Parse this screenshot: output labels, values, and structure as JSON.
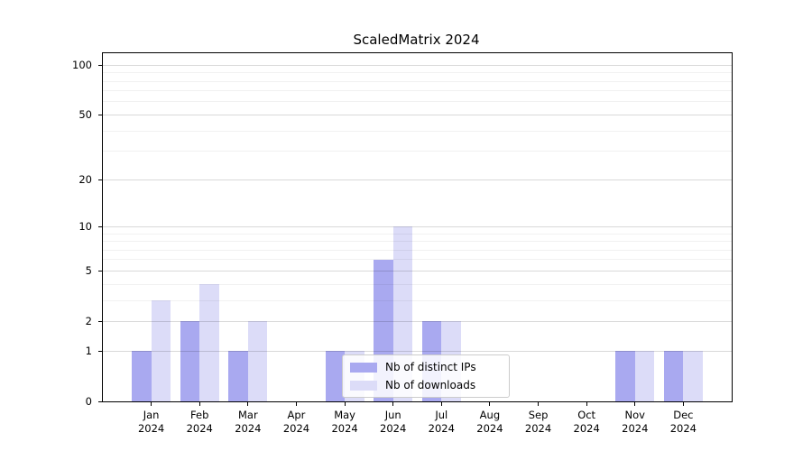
{
  "title": "ScaledMatrix 2024",
  "colors": {
    "series_ips": "#a9a9f0",
    "series_downloads": "#dcdcf8",
    "grid_major": "rgba(0,0,0,0.15)",
    "grid_minor": "rgba(0,0,0,0.055)",
    "axis": "#000000",
    "background": "#ffffff",
    "legend_border": "#cccccc"
  },
  "chart_data": {
    "type": "bar",
    "title": "ScaledMatrix 2024",
    "categories": [
      "Jan",
      "Feb",
      "Mar",
      "Apr",
      "May",
      "Jun",
      "Jul",
      "Aug",
      "Sep",
      "Oct",
      "Nov",
      "Dec"
    ],
    "year_label": "2024",
    "series": [
      {
        "name": "Nb of distinct IPs",
        "color": "#a9a9f0",
        "values": [
          1,
          2,
          1,
          0,
          1,
          6,
          2,
          0,
          0,
          0,
          1,
          1
        ]
      },
      {
        "name": "Nb of downloads",
        "color": "#dcdcf8",
        "values": [
          3,
          4,
          2,
          0,
          1,
          10,
          2,
          0,
          0,
          0,
          1,
          1
        ]
      }
    ],
    "yscale": "log1p",
    "yticks": [
      0,
      1,
      2,
      5,
      10,
      20,
      50,
      100
    ],
    "minor_gridlines": [
      3,
      4,
      6,
      7,
      8,
      9,
      30,
      40,
      60,
      70,
      80,
      90
    ],
    "ylim": [
      0,
      118
    ],
    "xlabel": "",
    "ylabel": "",
    "grid": true,
    "legend_position": "lower center"
  }
}
